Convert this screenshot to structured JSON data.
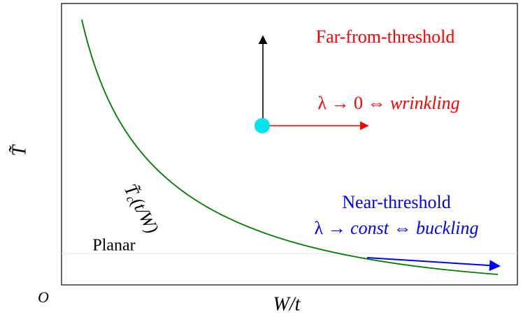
{
  "axes": {
    "y_label": "T̃",
    "x_label": "W/t",
    "origin": "O"
  },
  "curve_label": {
    "symbol": "T̃",
    "subscript": "c",
    "argument": "(t/W)"
  },
  "regions": {
    "planar": "Planar"
  },
  "far_from_threshold": {
    "title": "Far-from-threshold",
    "relation": "λ → 0 ⇔",
    "mode": "wrinkling"
  },
  "near_threshold": {
    "title": "Near-threshold",
    "relation_start": "λ →",
    "constant": "const",
    "relation_mid": "⇔",
    "mode": "buckling"
  }
}
